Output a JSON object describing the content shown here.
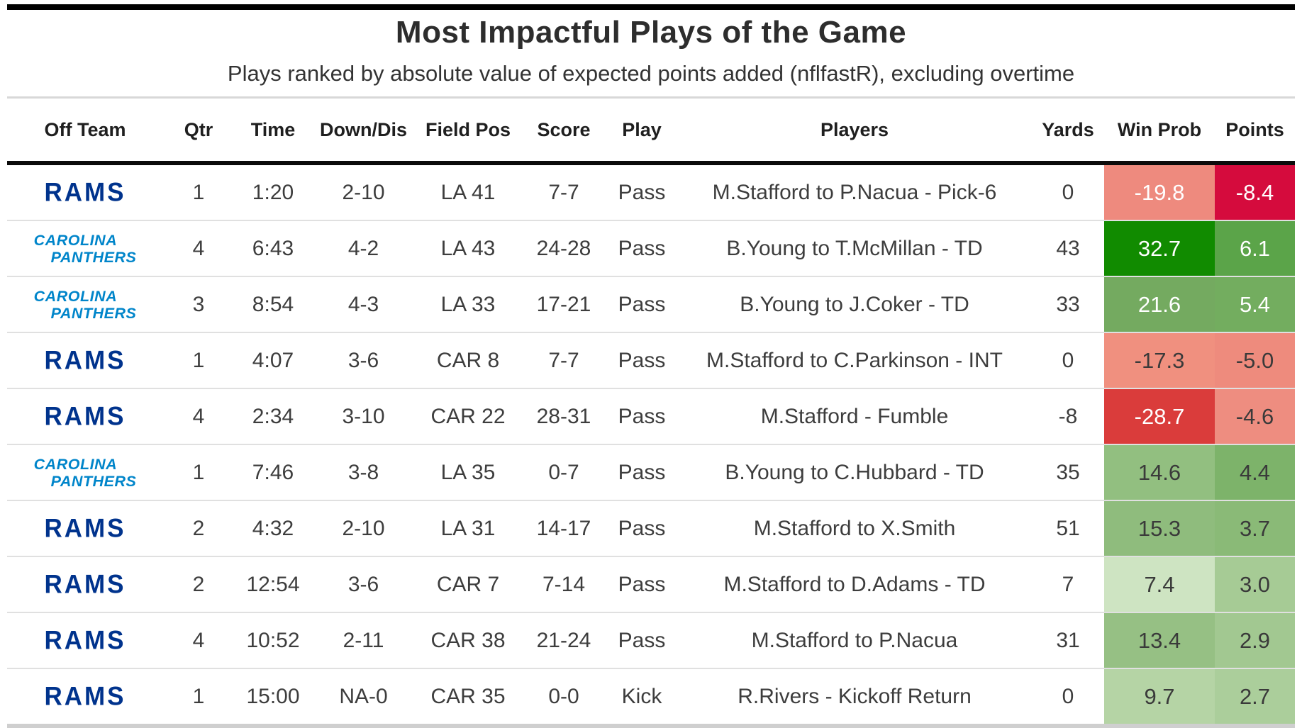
{
  "title": "Most Impactful Plays of the Game",
  "subtitle": "Plays ranked by absolute value of expected points added (nflfastR), excluding overtime",
  "colors": {
    "rams_blue": "#00338D",
    "panthers_blue": "#0085CA",
    "negative_strong": "#D50B3D",
    "negative_soft": "#EE8A7E",
    "positive_strong": "#118B00",
    "header_rule": "#0B0B0B"
  },
  "chart_data": {
    "type": "table",
    "title": "Most Impactful Plays of the Game",
    "subtitle": "Plays ranked by absolute value of expected points added (nflfastR), excluding overtime",
    "columns": [
      "Off Team",
      "Qtr",
      "Time",
      "Down/Dis",
      "Field Pos",
      "Score",
      "Play",
      "Players",
      "Yards",
      "Win Prob",
      "Points"
    ],
    "rows": [
      {
        "team": {
          "id": "rams",
          "color": "#00338D",
          "lines": [
            "RAMS"
          ]
        },
        "qtr": "1",
        "time": "1:20",
        "down_dis": "2-10",
        "field_pos": "LA 41",
        "score": "7-7",
        "play": "Pass",
        "players": "M.Stafford to P.Nacua - Pick-6",
        "yards": "0",
        "win_prob": {
          "value": "-19.8",
          "bg": "#EE8A7E",
          "fg": "#ffffff"
        },
        "points": {
          "value": "-8.4",
          "bg": "#D50B3D",
          "fg": "#ffffff"
        }
      },
      {
        "team": {
          "id": "panthers",
          "color": "#0085CA",
          "lines": [
            "CAROLINA",
            "PANTHERS"
          ]
        },
        "qtr": "4",
        "time": "6:43",
        "down_dis": "4-2",
        "field_pos": "LA 43",
        "score": "24-28",
        "play": "Pass",
        "players": "B.Young to T.McMillan - TD",
        "yards": "43",
        "win_prob": {
          "value": "32.7",
          "bg": "#118B00",
          "fg": "#ffffff"
        },
        "points": {
          "value": "6.1",
          "bg": "#5BA449",
          "fg": "#ffffff"
        }
      },
      {
        "team": {
          "id": "panthers",
          "color": "#0085CA",
          "lines": [
            "CAROLINA",
            "PANTHERS"
          ]
        },
        "qtr": "3",
        "time": "8:54",
        "down_dis": "4-3",
        "field_pos": "LA 33",
        "score": "17-21",
        "play": "Pass",
        "players": "B.Young to J.Coker - TD",
        "yards": "33",
        "win_prob": {
          "value": "21.6",
          "bg": "#74AA60",
          "fg": "#ffffff"
        },
        "points": {
          "value": "5.4",
          "bg": "#73AD5F",
          "fg": "#ffffff"
        }
      },
      {
        "team": {
          "id": "rams",
          "color": "#00338D",
          "lines": [
            "RAMS"
          ]
        },
        "qtr": "1",
        "time": "4:07",
        "down_dis": "3-6",
        "field_pos": "CAR 8",
        "score": "7-7",
        "play": "Pass",
        "players": "M.Stafford to C.Parkinson - INT",
        "yards": "0",
        "win_prob": {
          "value": "-17.3",
          "bg": "#F0907F",
          "fg": "#3a3a3a"
        },
        "points": {
          "value": "-5.0",
          "bg": "#EE8B7D",
          "fg": "#3a3a3a"
        }
      },
      {
        "team": {
          "id": "rams",
          "color": "#00338D",
          "lines": [
            "RAMS"
          ]
        },
        "qtr": "4",
        "time": "2:34",
        "down_dis": "3-10",
        "field_pos": "CAR 22",
        "score": "28-31",
        "play": "Pass",
        "players": "M.Stafford - Fumble",
        "yards": "-8",
        "win_prob": {
          "value": "-28.7",
          "bg": "#DA3C3B",
          "fg": "#ffffff"
        },
        "points": {
          "value": "-4.6",
          "bg": "#EE8D80",
          "fg": "#3a3a3a"
        }
      },
      {
        "team": {
          "id": "panthers",
          "color": "#0085CA",
          "lines": [
            "CAROLINA",
            "PANTHERS"
          ]
        },
        "qtr": "1",
        "time": "7:46",
        "down_dis": "3-8",
        "field_pos": "LA 35",
        "score": "0-7",
        "play": "Pass",
        "players": "B.Young to C.Hubbard - TD",
        "yards": "35",
        "win_prob": {
          "value": "14.6",
          "bg": "#92BF80",
          "fg": "#3a3a3a"
        },
        "points": {
          "value": "4.4",
          "bg": "#7DB36A",
          "fg": "#3a3a3a"
        }
      },
      {
        "team": {
          "id": "rams",
          "color": "#00338D",
          "lines": [
            "RAMS"
          ]
        },
        "qtr": "2",
        "time": "4:32",
        "down_dis": "2-10",
        "field_pos": "LA 31",
        "score": "14-17",
        "play": "Pass",
        "players": "M.Stafford to X.Smith",
        "yards": "51",
        "win_prob": {
          "value": "15.3",
          "bg": "#8FBC7D",
          "fg": "#3a3a3a"
        },
        "points": {
          "value": "3.7",
          "bg": "#8ABA77",
          "fg": "#3a3a3a"
        }
      },
      {
        "team": {
          "id": "rams",
          "color": "#00338D",
          "lines": [
            "RAMS"
          ]
        },
        "qtr": "2",
        "time": "12:54",
        "down_dis": "3-6",
        "field_pos": "CAR 7",
        "score": "7-14",
        "play": "Pass",
        "players": "M.Stafford to D.Adams - TD",
        "yards": "7",
        "win_prob": {
          "value": "7.4",
          "bg": "#CEE4C2",
          "fg": "#3a3a3a"
        },
        "points": {
          "value": "3.0",
          "bg": "#A6CB95",
          "fg": "#3a3a3a"
        }
      },
      {
        "team": {
          "id": "rams",
          "color": "#00338D",
          "lines": [
            "RAMS"
          ]
        },
        "qtr": "4",
        "time": "10:52",
        "down_dis": "2-11",
        "field_pos": "CAR 38",
        "score": "21-24",
        "play": "Pass",
        "players": "M.Stafford to P.Nacua",
        "yards": "31",
        "win_prob": {
          "value": "13.4",
          "bg": "#96C084",
          "fg": "#3a3a3a"
        },
        "points": {
          "value": "2.9",
          "bg": "#A2C891",
          "fg": "#3a3a3a"
        }
      },
      {
        "team": {
          "id": "rams",
          "color": "#00338D",
          "lines": [
            "RAMS"
          ]
        },
        "qtr": "1",
        "time": "15:00",
        "down_dis": "NA-0",
        "field_pos": "CAR 35",
        "score": "0-0",
        "play": "Kick",
        "players": "R.Rivers - Kickoff Return",
        "yards": "0",
        "win_prob": {
          "value": "9.7",
          "bg": "#B5D4A5",
          "fg": "#3a3a3a"
        },
        "points": {
          "value": "2.7",
          "bg": "#ABCE9B",
          "fg": "#3a3a3a"
        }
      }
    ]
  }
}
